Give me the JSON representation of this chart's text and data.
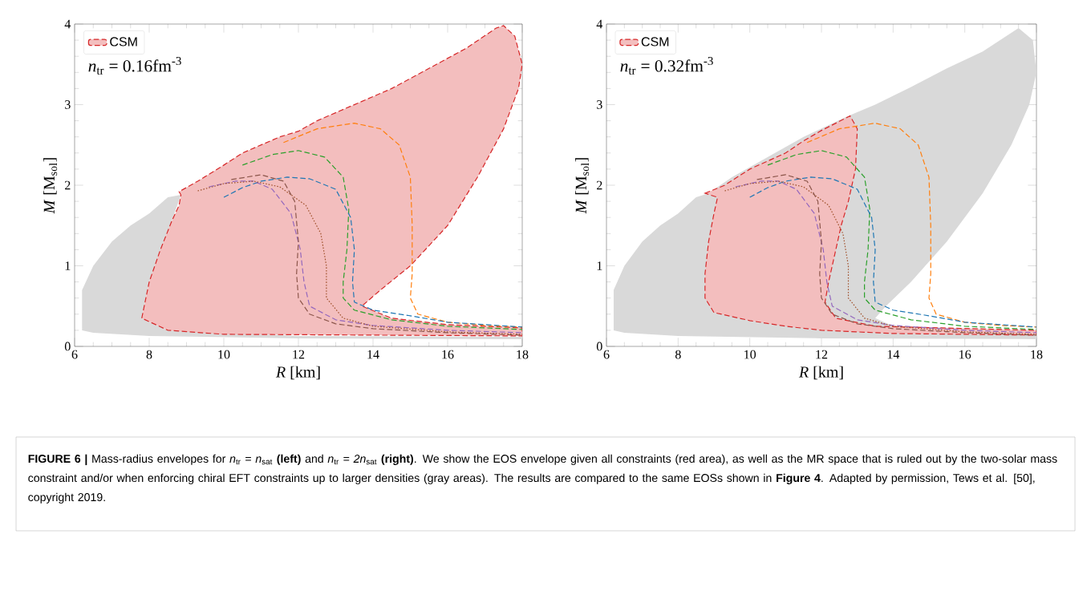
{
  "chart_data": [
    {
      "type": "line",
      "xlabel": "*R* [km]",
      "ylabel": "*M*  [M$_{sol}$]",
      "xlim": [
        6,
        18
      ],
      "ylim": [
        0,
        4
      ],
      "xticks": [
        6,
        8,
        10,
        12,
        14,
        16,
        18
      ],
      "yticks": [
        0,
        1,
        2,
        3,
        4
      ],
      "legend": "top left",
      "annotations": [
        "*n*$_{tr}$ = 0.16fm$^{-3}$"
      ],
      "series": [
        {
          "type": "area",
          "color": "#d9d9d9",
          "x": [
            6.2,
            6.2,
            6.5,
            7,
            7.5,
            8,
            8.5,
            8.85,
            8.6,
            8.0,
            7.8,
            8.5,
            12,
            18,
            18,
            12,
            8,
            6.5
          ],
          "values": [
            0.2,
            0.7,
            1.0,
            1.3,
            1.5,
            1.65,
            1.85,
            1.88,
            1.55,
            0.8,
            0.35,
            0.2,
            0.13,
            0.12,
            0.09,
            0.1,
            0.13,
            0.17
          ]
        },
        {
          "type": "area",
          "name": "CSM",
          "color": "#d62728",
          "line_style": "dashed",
          "x": [
            7.8,
            8.0,
            8.3,
            8.6,
            8.8,
            8.85,
            8.8,
            9.3,
            10,
            10.5,
            11,
            11.5,
            12,
            12.5,
            13.5,
            14.5,
            15.5,
            16.5,
            17.3,
            17.5,
            17.8,
            18.0,
            17.9,
            17.5,
            16.8,
            16,
            15.0,
            14.2,
            13.7,
            14.5,
            16,
            18,
            18,
            14,
            10,
            8.5
          ],
          "values": [
            0.35,
            0.8,
            1.2,
            1.55,
            1.75,
            1.88,
            1.92,
            2.05,
            2.25,
            2.4,
            2.5,
            2.6,
            2.67,
            2.8,
            3.0,
            3.2,
            3.45,
            3.7,
            3.95,
            3.98,
            3.85,
            3.5,
            3.2,
            2.7,
            2.1,
            1.5,
            1.0,
            0.7,
            0.5,
            0.35,
            0.27,
            0.23,
            0.13,
            0.14,
            0.15,
            0.2
          ]
        },
        {
          "type": "line",
          "color": "#ff7f0e",
          "line_style": "dashed",
          "x": [
            11.6,
            12.5,
            13.5,
            14.2,
            14.7,
            15.0,
            15.05,
            15.05,
            15.0,
            15.2,
            16,
            17,
            18
          ],
          "values": [
            2.53,
            2.7,
            2.77,
            2.7,
            2.5,
            2.1,
            1.5,
            0.9,
            0.6,
            0.4,
            0.3,
            0.26,
            0.24
          ]
        },
        {
          "type": "line",
          "color": "#2ca02c",
          "line_style": "dashed",
          "x": [
            10.5,
            11.3,
            12,
            12.7,
            13.2,
            13.35,
            13.3,
            13.2,
            13.2,
            13.5,
            14.5,
            16,
            18
          ],
          "values": [
            2.25,
            2.38,
            2.43,
            2.35,
            2.1,
            1.7,
            1.2,
            0.8,
            0.6,
            0.45,
            0.33,
            0.25,
            0.21
          ]
        },
        {
          "type": "line",
          "color": "#1f77b4",
          "line_style": "dashed",
          "x": [
            10,
            10.5,
            11,
            11.7,
            12.3,
            13,
            13.4,
            13.5,
            13.45,
            13.5,
            14,
            15,
            16,
            18
          ],
          "values": [
            1.85,
            1.97,
            2.05,
            2.1,
            2.08,
            1.95,
            1.6,
            1.2,
            0.8,
            0.55,
            0.45,
            0.38,
            0.3,
            0.24
          ]
        },
        {
          "type": "line",
          "color": "#9467bd",
          "line_style": "dashed",
          "x": [
            9.6,
            10.3,
            10.8,
            11.3,
            11.8,
            12.05,
            12.15,
            12.3,
            13,
            14,
            16,
            18
          ],
          "values": [
            1.98,
            2.05,
            2.05,
            1.95,
            1.65,
            1.2,
            0.8,
            0.5,
            0.33,
            0.26,
            0.2,
            0.17
          ]
        },
        {
          "type": "line",
          "color": "#a0522d",
          "line_style": "dotted",
          "x": [
            9.3,
            10,
            10.8,
            11.5,
            12.2,
            12.6,
            12.75,
            12.75,
            13.2,
            14,
            16,
            18
          ],
          "values": [
            1.93,
            2.02,
            2.05,
            1.98,
            1.75,
            1.4,
            1.0,
            0.6,
            0.35,
            0.25,
            0.18,
            0.15
          ]
        },
        {
          "type": "line",
          "color": "#8c564b",
          "line_style": "dashed",
          "x": [
            10.2,
            11,
            11.6,
            11.9,
            12.0,
            11.95,
            12,
            12.3,
            13,
            14,
            16,
            18
          ],
          "values": [
            2.07,
            2.13,
            2.05,
            1.8,
            1.3,
            0.9,
            0.6,
            0.4,
            0.28,
            0.22,
            0.17,
            0.14
          ]
        }
      ]
    },
    {
      "type": "line",
      "xlabel": "*R* [km]",
      "ylabel": "*M*  [M$_{sol}$]",
      "xlim": [
        6,
        18
      ],
      "ylim": [
        0,
        4
      ],
      "xticks": [
        6,
        8,
        10,
        12,
        14,
        16,
        18
      ],
      "yticks": [
        0,
        1,
        2,
        3,
        4
      ],
      "legend": "top left",
      "annotations": [
        "*n*$_{tr}$ = 0.32fm$^{-3}$",
        "**FIGURE 6 |** Mass-radius envelopes for *n*$_{tr}$ = *n*$_{sat}$ **(left)** and *n*$_{tr}$ = *2n*$_{sat}$ **(right)**. We show the EOS envelope given all constraints (red area), as well as the MR space that is ruled out by the two-solar mass constraint and/or when enforcing chiral EFT constraints up to larger densities (gray areas). The results are compared to the same EOSs shown in **Figure 4**. Adapted by permission, Tews et al. [50], copyright 2019."
      ],
      "series": [
        {
          "type": "area",
          "color": "#d9d9d9",
          "x": [
            6.2,
            6.2,
            6.5,
            7,
            7.5,
            8,
            8.5,
            8.85,
            9.5,
            10.5,
            11.5,
            12.7,
            13.5,
            14.5,
            15.5,
            16.5,
            17.5,
            17.9,
            18,
            17.8,
            17.3,
            16.5,
            15.5,
            14.5,
            13.8,
            13.5,
            14,
            18,
            18,
            12,
            8,
            6.5
          ],
          "values": [
            0.2,
            0.7,
            1.0,
            1.3,
            1.5,
            1.65,
            1.85,
            1.9,
            2.1,
            2.35,
            2.6,
            2.85,
            3.0,
            3.22,
            3.45,
            3.66,
            3.95,
            3.8,
            3.4,
            3.0,
            2.5,
            1.9,
            1.3,
            0.8,
            0.5,
            0.35,
            0.25,
            0.2,
            0.09,
            0.1,
            0.13,
            0.17
          ]
        },
        {
          "type": "area",
          "name": "CSM",
          "color": "#d62728",
          "line_style": "dashed",
          "x": [
            8.75,
            9.3,
            10,
            10.5,
            11,
            11.5,
            12,
            12.8,
            13.0,
            12.95,
            12.75,
            12.55,
            12.35,
            12.2,
            12.1,
            12.4,
            13.5,
            18,
            18,
            14,
            12,
            11,
            10,
            9.0,
            8.75,
            8.75,
            8.85,
            9.0,
            9.1
          ],
          "values": [
            1.9,
            2.0,
            2.2,
            2.3,
            2.4,
            2.55,
            2.68,
            2.86,
            2.7,
            2.2,
            1.8,
            1.5,
            1.1,
            0.8,
            0.55,
            0.35,
            0.25,
            0.2,
            0.14,
            0.16,
            0.2,
            0.25,
            0.32,
            0.42,
            0.6,
            0.9,
            1.3,
            1.65,
            1.85
          ]
        },
        {
          "type": "line",
          "color": "#ff7f0e",
          "line_style": "dashed",
          "x": [
            11.6,
            12.5,
            13.5,
            14.2,
            14.7,
            15.0,
            15.05,
            15.05,
            15.0,
            15.2,
            16,
            17,
            18
          ],
          "values": [
            2.53,
            2.7,
            2.77,
            2.7,
            2.5,
            2.1,
            1.5,
            0.9,
            0.6,
            0.4,
            0.3,
            0.26,
            0.24
          ]
        },
        {
          "type": "line",
          "color": "#2ca02c",
          "line_style": "dashed",
          "x": [
            10.5,
            11.3,
            12,
            12.7,
            13.2,
            13.35,
            13.3,
            13.2,
            13.2,
            13.5,
            14.5,
            16,
            18
          ],
          "values": [
            2.25,
            2.38,
            2.43,
            2.35,
            2.1,
            1.7,
            1.2,
            0.8,
            0.6,
            0.45,
            0.33,
            0.25,
            0.21
          ]
        },
        {
          "type": "line",
          "color": "#1f77b4",
          "line_style": "dashed",
          "x": [
            10,
            10.5,
            11,
            11.7,
            12.3,
            13,
            13.4,
            13.5,
            13.45,
            13.5,
            14,
            15,
            16,
            18
          ],
          "values": [
            1.85,
            1.97,
            2.05,
            2.1,
            2.08,
            1.95,
            1.6,
            1.2,
            0.8,
            0.55,
            0.45,
            0.38,
            0.3,
            0.24
          ]
        },
        {
          "type": "line",
          "color": "#9467bd",
          "line_style": "dashed",
          "x": [
            9.6,
            10.3,
            10.8,
            11.3,
            11.8,
            12.05,
            12.15,
            12.3,
            13,
            14,
            16,
            18
          ],
          "values": [
            1.98,
            2.05,
            2.05,
            1.95,
            1.65,
            1.2,
            0.8,
            0.5,
            0.33,
            0.26,
            0.2,
            0.17
          ]
        },
        {
          "type": "line",
          "color": "#a0522d",
          "line_style": "dotted",
          "x": [
            9.3,
            10,
            10.8,
            11.5,
            12.2,
            12.6,
            12.75,
            12.75,
            13.2,
            14,
            16,
            18
          ],
          "values": [
            1.93,
            2.02,
            2.05,
            1.98,
            1.75,
            1.4,
            1.0,
            0.6,
            0.35,
            0.25,
            0.18,
            0.15
          ]
        },
        {
          "type": "line",
          "color": "#8c564b",
          "line_style": "dashed",
          "x": [
            10.2,
            11,
            11.6,
            11.9,
            12.0,
            11.95,
            12,
            12.3,
            13,
            14,
            16,
            18
          ],
          "values": [
            2.07,
            2.13,
            2.05,
            1.8,
            1.3,
            0.9,
            0.6,
            0.4,
            0.28,
            0.22,
            0.17,
            0.14
          ]
        }
      ]
    }
  ]
}
